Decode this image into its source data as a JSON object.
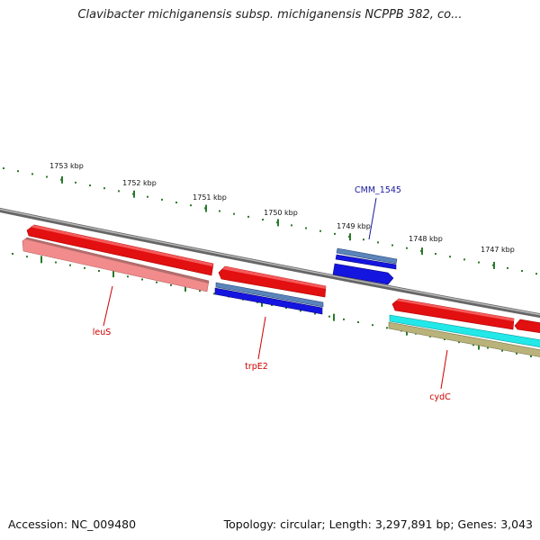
{
  "title": "Clavibacter michiganensis subsp. michiganensis NCPPB 382, co...",
  "footer": {
    "accession": "Accession: NC_009480",
    "summary": "Topology: circular; Length: 3,297,891 bp; Genes: 3,043"
  },
  "colors": {
    "backbone": "#8a8a8a",
    "tick": "#2a7a2a",
    "cds_forward": "#ee1111",
    "cds_forward_light": "#f28b8b",
    "gene_blue": "#1515e0",
    "gene_steel": "#5a84ba",
    "gene_cyan": "#22e8e8",
    "gene_khaki": "#b9b27a",
    "label_red": "#cc0000",
    "label_blue": "#1a1aa0"
  },
  "scale_labels": [
    "1753 kbp",
    "1752 kbp",
    "1751 kbp",
    "1750 kbp",
    "1749 kbp",
    "1748 kbp",
    "1747 kbp"
  ],
  "gene_labels": [
    {
      "name": "leuS",
      "color": "label_red"
    },
    {
      "name": "trpE2",
      "color": "label_red"
    },
    {
      "name": "CMM_1545",
      "color": "label_blue"
    },
    {
      "name": "cydC",
      "color": "label_red"
    }
  ]
}
